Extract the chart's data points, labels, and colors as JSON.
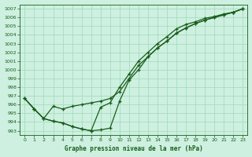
{
  "title": "Graphe pression niveau de la mer (hPa)",
  "bg_color": "#cdf0e0",
  "line_color": "#1a5c1a",
  "grid_color": "#a0d8b8",
  "xlim": [
    -0.5,
    23.5
  ],
  "ylim": [
    992.5,
    1007.5
  ],
  "yticks": [
    993,
    994,
    995,
    996,
    997,
    998,
    999,
    1000,
    1001,
    1002,
    1003,
    1004,
    1005,
    1006,
    1007
  ],
  "xticks": [
    0,
    1,
    2,
    3,
    4,
    5,
    6,
    7,
    8,
    9,
    10,
    11,
    12,
    13,
    14,
    15,
    16,
    17,
    18,
    19,
    20,
    21,
    22,
    23
  ],
  "series": {
    "line1": {
      "x": [
        0,
        1,
        2,
        3,
        4,
        5,
        6,
        7,
        8,
        9,
        10,
        11,
        12,
        13,
        14,
        15,
        16,
        17,
        18,
        19,
        20,
        21,
        22,
        23
      ],
      "y": [
        996.7,
        995.5,
        994.4,
        995.8,
        995.5,
        995.8,
        996.0,
        996.2,
        996.4,
        996.7,
        997.5,
        999.0,
        1000.5,
        1001.5,
        1002.5,
        1003.3,
        1004.2,
        1004.8,
        1005.3,
        1005.7,
        1006.0,
        1006.3,
        1006.6,
        1007.0
      ]
    },
    "line2": {
      "x": [
        0,
        1,
        2,
        3,
        4,
        5,
        6,
        7,
        8,
        9,
        10,
        11,
        12,
        13,
        14,
        15,
        16,
        17,
        18,
        19,
        20,
        21,
        22,
        23
      ],
      "y": [
        996.7,
        995.5,
        994.4,
        994.1,
        993.9,
        993.5,
        993.2,
        993.0,
        993.1,
        993.3,
        996.4,
        998.8,
        1000.0,
        1001.5,
        1002.5,
        1003.3,
        1004.2,
        1004.8,
        1005.3,
        1005.7,
        1006.0,
        1006.3,
        1006.6,
        1007.0
      ]
    },
    "line3": {
      "x": [
        0,
        1,
        2,
        3,
        4,
        5,
        6,
        7,
        8,
        9,
        10,
        11,
        12,
        13,
        14,
        15,
        16,
        17,
        18,
        19,
        20,
        21,
        22,
        23
      ],
      "y": [
        996.7,
        995.5,
        994.4,
        994.1,
        993.9,
        993.5,
        993.2,
        993.0,
        995.7,
        996.2,
        998.0,
        999.5,
        1001.0,
        1002.0,
        1003.0,
        1003.8,
        1004.7,
        1005.2,
        1005.5,
        1005.9,
        1006.1,
        1006.4,
        1006.6,
        1007.0
      ]
    }
  }
}
